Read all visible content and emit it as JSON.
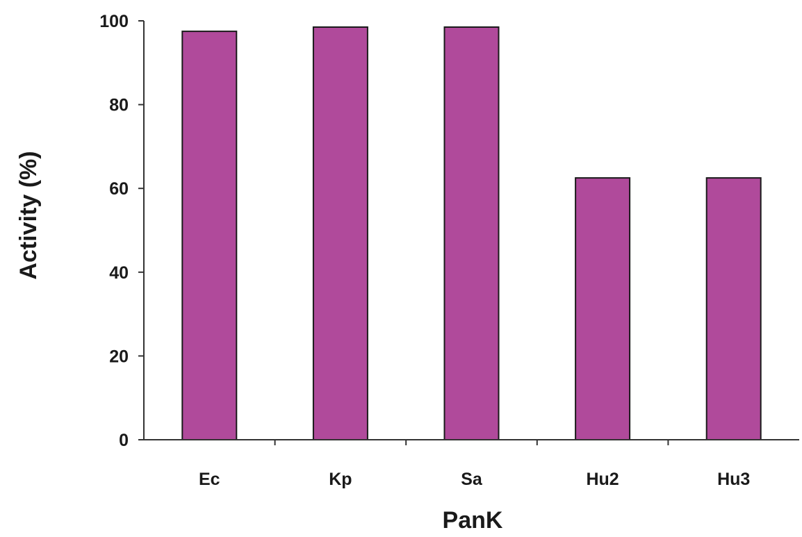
{
  "chart_data": {
    "type": "bar",
    "title": "",
    "xlabel": "PanK",
    "ylabel": "Activity (%)",
    "categories": [
      "Ec",
      "Kp",
      "Sa",
      "Hu2",
      "Hu3"
    ],
    "values": [
      97.5,
      98.5,
      98.5,
      62.5,
      62.5
    ],
    "ylim": [
      0,
      100
    ],
    "yticks": [
      "0",
      "20",
      "40",
      "60",
      "80",
      "100"
    ],
    "grid": false,
    "legend": "none",
    "colors": {
      "bar_fill": "#b04a9b",
      "bar_stroke": "#1a1a1a",
      "axis": "#333333"
    }
  }
}
